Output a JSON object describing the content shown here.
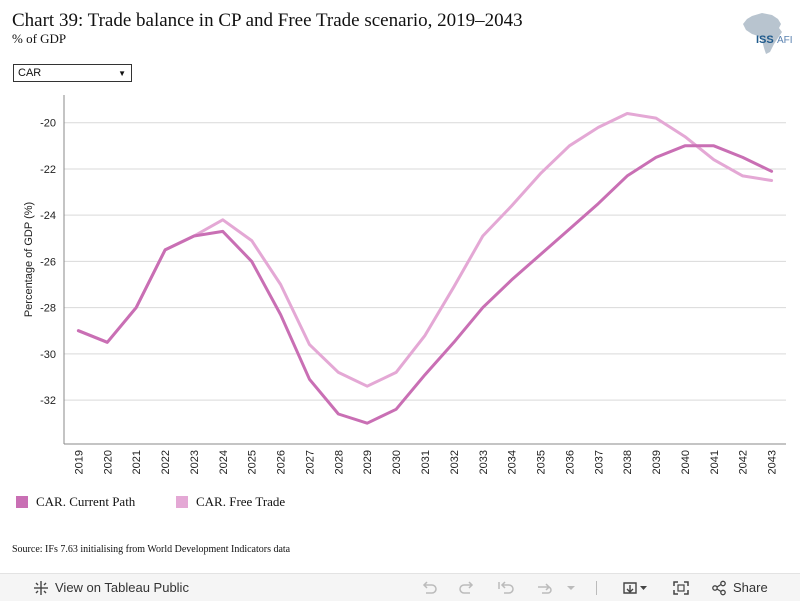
{
  "header": {
    "title": "Chart 39: Trade balance in CP and Free Trade scenario, 2019–2043",
    "subtitle": "% of GDP",
    "logo_text": "ISS AFI"
  },
  "filter": {
    "selected": "CAR"
  },
  "source": "Source: IFs 7.63 initialising from World Development Indicators data",
  "toolbar": {
    "view_label": "View on Tableau Public",
    "share_label": "Share",
    "icons": [
      "tableau-logo-icon",
      "undo-icon",
      "redo-icon",
      "revert-icon",
      "refresh-icon",
      "download-icon",
      "fullscreen-icon",
      "share-icon"
    ]
  },
  "colors": {
    "current_path": "#c96fb4",
    "free_trade": "#e4a8d5",
    "grid": "#d9d9d9",
    "axis": "#888888"
  },
  "chart_data": {
    "type": "line",
    "title": "Chart 39: Trade balance in CP and Free Trade scenario, 2019–2043",
    "subtitle": "% of GDP",
    "xlabel": "",
    "ylabel": "Percentage of GDP (%)",
    "ylim": [
      -33.9,
      -18.8
    ],
    "yticks": [
      -32,
      -30,
      -28,
      -26,
      -24,
      -22,
      -20
    ],
    "grid": true,
    "legend_position": "bottom-left",
    "x": [
      2019,
      2020,
      2021,
      2022,
      2023,
      2024,
      2025,
      2026,
      2027,
      2028,
      2029,
      2030,
      2031,
      2032,
      2033,
      2034,
      2035,
      2036,
      2037,
      2038,
      2039,
      2040,
      2041,
      2042,
      2043
    ],
    "series": [
      {
        "name": "CAR. Current Path",
        "color": "#c96fb4",
        "values": [
          -29.0,
          -29.5,
          -28.0,
          -25.5,
          -24.9,
          -24.7,
          -26.0,
          -28.3,
          -31.1,
          -32.6,
          -33.0,
          -32.4,
          -30.9,
          -29.5,
          -28.0,
          -26.8,
          -25.7,
          -24.6,
          -23.5,
          -22.3,
          -21.5,
          -21.0,
          -21.0,
          -21.5,
          -22.1
        ]
      },
      {
        "name": "CAR. Free Trade",
        "color": "#e4a8d5",
        "values": [
          -29.0,
          -29.5,
          -28.0,
          -25.5,
          -24.9,
          -24.2,
          -25.1,
          -27.0,
          -29.6,
          -30.8,
          -31.4,
          -30.8,
          -29.2,
          -27.1,
          -24.9,
          -23.6,
          -22.2,
          -21.0,
          -20.2,
          -19.6,
          -19.8,
          -20.6,
          -21.6,
          -22.3,
          -22.5
        ]
      }
    ]
  }
}
